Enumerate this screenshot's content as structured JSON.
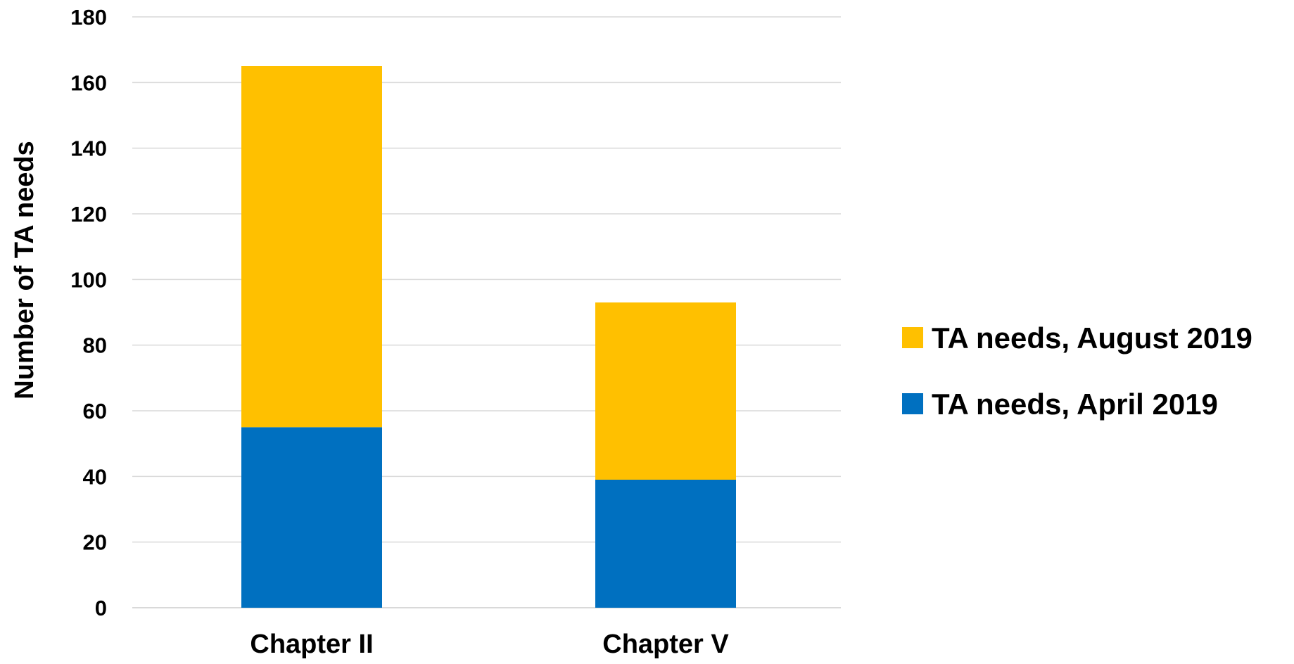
{
  "chart_data": {
    "type": "bar",
    "stacked": true,
    "categories": [
      "Chapter II",
      "Chapter V"
    ],
    "series": [
      {
        "name": "TA needs, April 2019",
        "values": [
          55,
          39
        ],
        "color": "#0070c0"
      },
      {
        "name": "TA needs, August 2019",
        "values": [
          110,
          54
        ],
        "color": "#ffc000"
      }
    ],
    "title": "",
    "xlabel": "",
    "ylabel": "Number of TA needs",
    "ylim": [
      0,
      180
    ],
    "yticks": [
      0,
      20,
      40,
      60,
      80,
      100,
      120,
      140,
      160,
      180
    ],
    "grid": true,
    "legend": {
      "position": "right",
      "order": [
        "TA needs, August 2019",
        "TA needs, April 2019"
      ]
    }
  }
}
